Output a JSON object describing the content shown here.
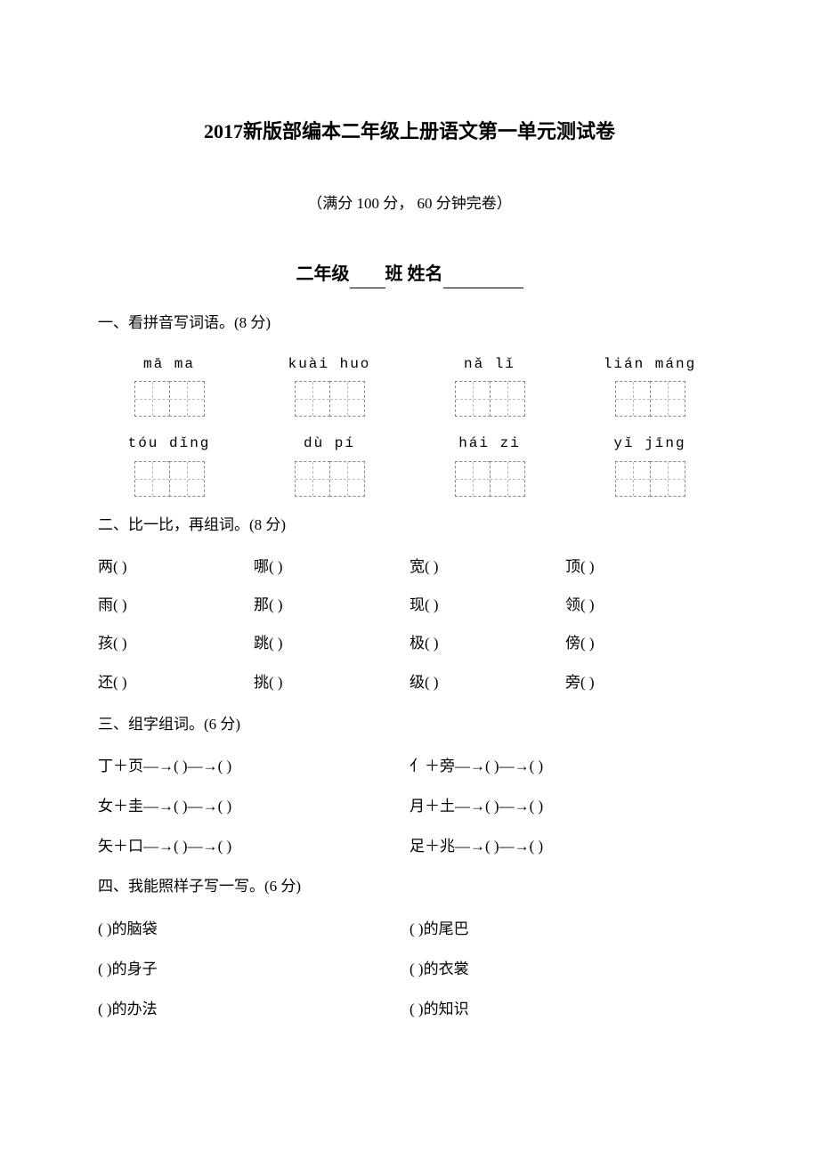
{
  "title": "2017新版部编本二年级上册语文第一单元测试卷",
  "subtitle": "（满分 100 分，  60 分钟完卷）",
  "class_line": {
    "prefix": "二年级",
    "mid": "班  姓名"
  },
  "section1": {
    "heading": "一、看拼音写词语。(8 分)",
    "rows": [
      {
        "pinyin": [
          "mā ma",
          "kuài huo",
          "nǎ  lǐ",
          "lián máng"
        ]
      },
      {
        "pinyin": [
          "tóu dǐng",
          "dù  pí",
          "hái  zi",
          "yǐ  jīng"
        ]
      }
    ]
  },
  "section2": {
    "heading": "二、比一比，再组词。(8 分)",
    "rows": [
      [
        "两(      )",
        "哪(      )",
        "宽(      )",
        "顶(      )"
      ],
      [
        "雨(      )",
        "那(      )",
        "现(      )",
        "领(      )"
      ],
      [
        "孩(      )",
        "跳(      )",
        "极(      )",
        "傍(      )"
      ],
      [
        "还(      )",
        "挑(      )",
        "级(      )",
        "旁(      )"
      ]
    ]
  },
  "section3": {
    "heading": "三、组字组词。(6 分)",
    "rows": [
      [
        "丁＋页―→(  )―→(      )",
        "亻＋旁―→(  )―→(      )"
      ],
      [
        "女＋圭―→(  )―→(      )",
        "月＋土―→(  )―→(      )"
      ],
      [
        "矢＋口―→(  )―→(      )",
        "足＋兆―→(  )―→(      )"
      ]
    ]
  },
  "section4": {
    "heading": "四、我能照样子写一写。(6 分)",
    "rows": [
      [
        "(            )的脑袋",
        "(            )的尾巴"
      ],
      [
        "(            )的身子",
        "(            )的衣裳"
      ],
      [
        "(            )的办法",
        "(            )的知识"
      ]
    ]
  },
  "colors": {
    "text": "#000000",
    "bg": "#ffffff",
    "box_border": "#888888",
    "box_inner": "#bbbbbb"
  },
  "typography": {
    "title_fontsize": 22,
    "body_fontsize": 17,
    "classline_fontsize": 20,
    "pinyin_fontsize": 16
  }
}
